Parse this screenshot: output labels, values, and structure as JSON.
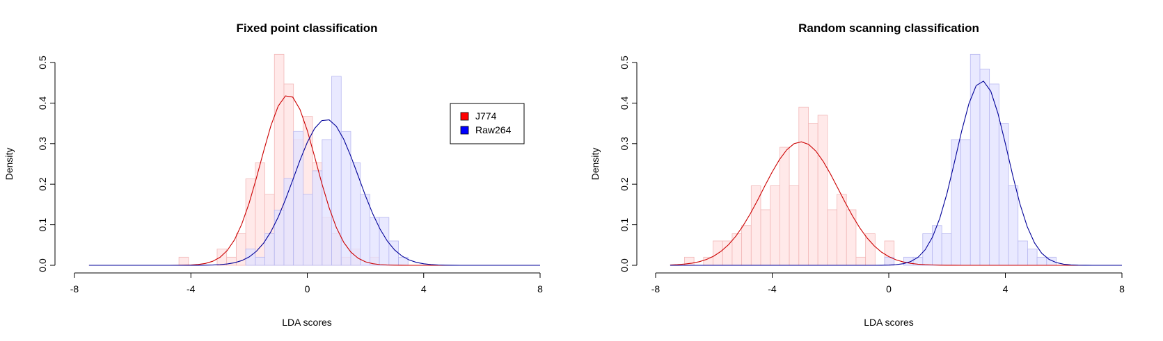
{
  "chart_data": [
    {
      "type": "histogram",
      "title": "Fixed point classification",
      "xlabel": "LDA scores",
      "ylabel": "Density",
      "xlim": [
        -8,
        8
      ],
      "ylim": [
        0,
        0.5
      ],
      "xticks": [
        "-8",
        "-4",
        "0",
        "4",
        "8"
      ],
      "yticks": [
        "0.0",
        "0.1",
        "0.2",
        "0.3",
        "0.4",
        "0.5"
      ],
      "bin_start": -4.41,
      "bin_width": 0.328,
      "legend": {
        "position": "top-right",
        "entries": [
          {
            "label": "J774",
            "color": "#ff0000"
          },
          {
            "label": "Raw264",
            "color": "#0000ff"
          }
        ]
      },
      "series": [
        {
          "name": "J774",
          "first_bin": 0,
          "values": [
            0.02,
            0,
            0,
            0,
            0.04,
            0.02,
            0.078,
            0.213,
            0.253,
            0.175,
            0.52,
            0.447,
            0.31,
            0.367,
            0.253,
            0.118,
            0.078,
            0.02,
            0.04,
            0,
            0.02
          ],
          "curve_mean": -0.65,
          "curve_sd": 0.95,
          "fill": "#ffe2e2",
          "edge": "#f2b8b8",
          "line": "#cc0000"
        },
        {
          "name": "Raw264",
          "first_bin": 7,
          "values": [
            0.04,
            0.02,
            0.078,
            0.136,
            0.214,
            0.33,
            0.175,
            0.233,
            0.31,
            0.466,
            0.33,
            0.253,
            0.175,
            0.118,
            0.118,
            0.06,
            0.02
          ],
          "curve_mean": 0.65,
          "curve_sd": 1.108,
          "fill": "#e2e2ff",
          "edge": "#b8b8f0",
          "line": "#000099"
        }
      ]
    },
    {
      "type": "histogram",
      "title": "Random scanning classification",
      "xlabel": "LDA scores",
      "ylabel": "Density",
      "xlim": [
        -8,
        8
      ],
      "ylim": [
        0,
        0.5
      ],
      "xticks": [
        "-8",
        "-4",
        "0",
        "4",
        "8"
      ],
      "yticks": [
        "0.0",
        "0.1",
        "0.2",
        "0.3",
        "0.4",
        "0.5"
      ],
      "bin_start": -7.01,
      "bin_width": 0.327,
      "series": [
        {
          "name": "J774",
          "first_bin": 0,
          "values": [
            0.02,
            0,
            0.02,
            0.06,
            0.06,
            0.078,
            0.098,
            0.196,
            0.137,
            0.196,
            0.291,
            0.196,
            0.39,
            0.35,
            0.37,
            0.137,
            0.175,
            0.137,
            0.02,
            0.078,
            0,
            0.06
          ],
          "curve_mean": -3.02,
          "curve_sd": 1.31,
          "fill": "#ffe2e2",
          "edge": "#f2b8b8",
          "line": "#cc0000"
        },
        {
          "name": "Raw264",
          "first_bin": 21,
          "values": [
            0.02,
            0,
            0.02,
            0.02,
            0.078,
            0.098,
            0.078,
            0.31,
            0.31,
            0.52,
            0.484,
            0.447,
            0.35,
            0.196,
            0.06,
            0.04,
            0.02,
            0.02
          ],
          "curve_mean": 3.2,
          "curve_sd": 0.877,
          "fill": "#e2e2ff",
          "edge": "#b8b8f0",
          "line": "#000099"
        }
      ]
    }
  ]
}
